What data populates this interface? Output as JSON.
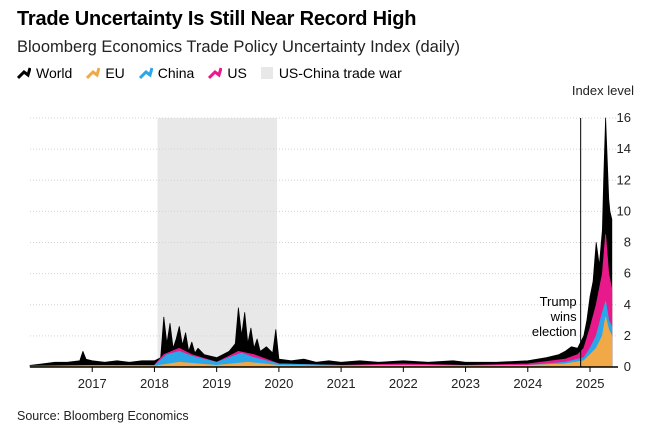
{
  "chart_data": {
    "type": "area",
    "title": "Trade Uncertainty Is Still Near Record High",
    "subtitle": "Bloomberg Economics Trade Policy Uncertainty Index (daily)",
    "ylabel": "Index level",
    "ylim": [
      0,
      16
    ],
    "yticks": [
      "0",
      "2",
      "4",
      "6",
      "8",
      "10",
      "12",
      "14",
      "16"
    ],
    "xlim": [
      2016.0,
      2025.45
    ],
    "xticks": [
      {
        "label": "2017",
        "value": 2017.0
      },
      {
        "label": "2018",
        "value": 2018.0
      },
      {
        "label": "2019",
        "value": 2019.0
      },
      {
        "label": "2020",
        "value": 2020.0
      },
      {
        "label": "2021",
        "value": 2021.0
      },
      {
        "label": "2022",
        "value": 2022.0
      },
      {
        "label": "2023",
        "value": 2023.0
      },
      {
        "label": "2024",
        "value": 2024.0
      },
      {
        "label": "2025",
        "value": 2025.0
      }
    ],
    "grid": true,
    "legend_position": "top-left",
    "shaded_period": {
      "label": "US-China trade war",
      "start": 2018.05,
      "end": 2019.97,
      "color": "#e8e8e8"
    },
    "annotation": {
      "lines": [
        "Trump",
        "wins",
        "election"
      ],
      "x": 2024.85
    },
    "series": [
      {
        "name": "World",
        "color": "#000000",
        "x": [
          2016.0,
          2016.2,
          2016.4,
          2016.6,
          2016.8,
          2016.85,
          2016.9,
          2017.0,
          2017.2,
          2017.4,
          2017.6,
          2017.8,
          2018.0,
          2018.1,
          2018.15,
          2018.2,
          2018.25,
          2018.3,
          2018.35,
          2018.4,
          2018.45,
          2018.5,
          2018.55,
          2018.6,
          2018.65,
          2018.7,
          2018.8,
          2018.9,
          2019.0,
          2019.1,
          2019.2,
          2019.3,
          2019.35,
          2019.4,
          2019.45,
          2019.5,
          2019.55,
          2019.6,
          2019.65,
          2019.7,
          2019.8,
          2019.9,
          2019.95,
          2020.0,
          2020.2,
          2020.4,
          2020.6,
          2020.8,
          2021.0,
          2021.3,
          2021.6,
          2022.0,
          2022.4,
          2022.8,
          2023.0,
          2023.5,
          2024.0,
          2024.3,
          2024.5,
          2024.6,
          2024.7,
          2024.8,
          2024.85,
          2024.9,
          2024.95,
          2025.0,
          2025.05,
          2025.1,
          2025.15,
          2025.2,
          2025.22,
          2025.25,
          2025.28,
          2025.3,
          2025.32,
          2025.35
        ],
        "values": [
          0.1,
          0.2,
          0.3,
          0.3,
          0.4,
          1.0,
          0.5,
          0.4,
          0.3,
          0.4,
          0.3,
          0.4,
          0.4,
          0.6,
          3.2,
          1.5,
          2.8,
          1.2,
          1.8,
          2.6,
          1.4,
          2.2,
          1.0,
          1.6,
          0.9,
          1.2,
          0.8,
          0.7,
          0.6,
          0.8,
          1.0,
          1.5,
          3.8,
          2.0,
          3.5,
          1.5,
          2.5,
          1.2,
          1.8,
          1.0,
          1.3,
          0.9,
          2.4,
          0.5,
          0.4,
          0.5,
          0.3,
          0.4,
          0.3,
          0.4,
          0.3,
          0.4,
          0.3,
          0.4,
          0.3,
          0.3,
          0.4,
          0.6,
          0.8,
          1.0,
          1.3,
          1.2,
          1.6,
          2.0,
          3.0,
          4.5,
          5.5,
          8.0,
          6.5,
          8.8,
          12.0,
          16.0,
          13.0,
          10.8,
          10.0,
          9.5
        ]
      },
      {
        "name": "US",
        "color": "#e8198b",
        "x": [
          2016.0,
          2017.0,
          2018.0,
          2018.15,
          2018.4,
          2018.6,
          2019.0,
          2019.35,
          2019.6,
          2020.0,
          2021.0,
          2022.0,
          2023.0,
          2024.0,
          2024.6,
          2024.8,
          2024.9,
          2025.0,
          2025.1,
          2025.2,
          2025.25,
          2025.3,
          2025.35
        ],
        "values": [
          0.05,
          0.1,
          0.1,
          0.8,
          1.2,
          0.8,
          0.3,
          1.0,
          0.8,
          0.2,
          0.1,
          0.2,
          0.1,
          0.2,
          0.5,
          0.8,
          1.2,
          2.5,
          4.0,
          6.0,
          8.5,
          6.0,
          5.0
        ]
      },
      {
        "name": "China",
        "color": "#2ba6e8",
        "x": [
          2016.0,
          2017.0,
          2018.0,
          2018.2,
          2018.4,
          2018.6,
          2019.0,
          2019.4,
          2019.6,
          2020.0,
          2021.0,
          2022.0,
          2023.0,
          2024.0,
          2024.6,
          2024.9,
          2025.0,
          2025.1,
          2025.2,
          2025.25,
          2025.3,
          2025.35
        ],
        "values": [
          0.05,
          0.1,
          0.1,
          0.8,
          1.0,
          0.7,
          0.3,
          0.9,
          0.6,
          0.2,
          0.1,
          0.1,
          0.1,
          0.1,
          0.3,
          0.6,
          1.2,
          2.0,
          3.5,
          4.2,
          3.0,
          2.6
        ]
      },
      {
        "name": "EU",
        "color": "#f0a946",
        "x": [
          2016.0,
          2017.0,
          2018.0,
          2018.4,
          2019.0,
          2019.5,
          2020.0,
          2021.0,
          2022.0,
          2023.0,
          2024.0,
          2024.6,
          2024.9,
          2025.0,
          2025.1,
          2025.2,
          2025.25,
          2025.3,
          2025.35
        ],
        "values": [
          0.02,
          0.05,
          0.05,
          0.3,
          0.1,
          0.3,
          0.1,
          0.05,
          0.1,
          0.05,
          0.1,
          0.2,
          0.4,
          0.8,
          1.2,
          2.0,
          3.2,
          2.4,
          2.0
        ]
      }
    ]
  },
  "legend": {
    "world": "World",
    "eu": "EU",
    "china": "China",
    "us": "US",
    "trade_war": "US-China trade war"
  },
  "source": "Source: Bloomberg Economics"
}
